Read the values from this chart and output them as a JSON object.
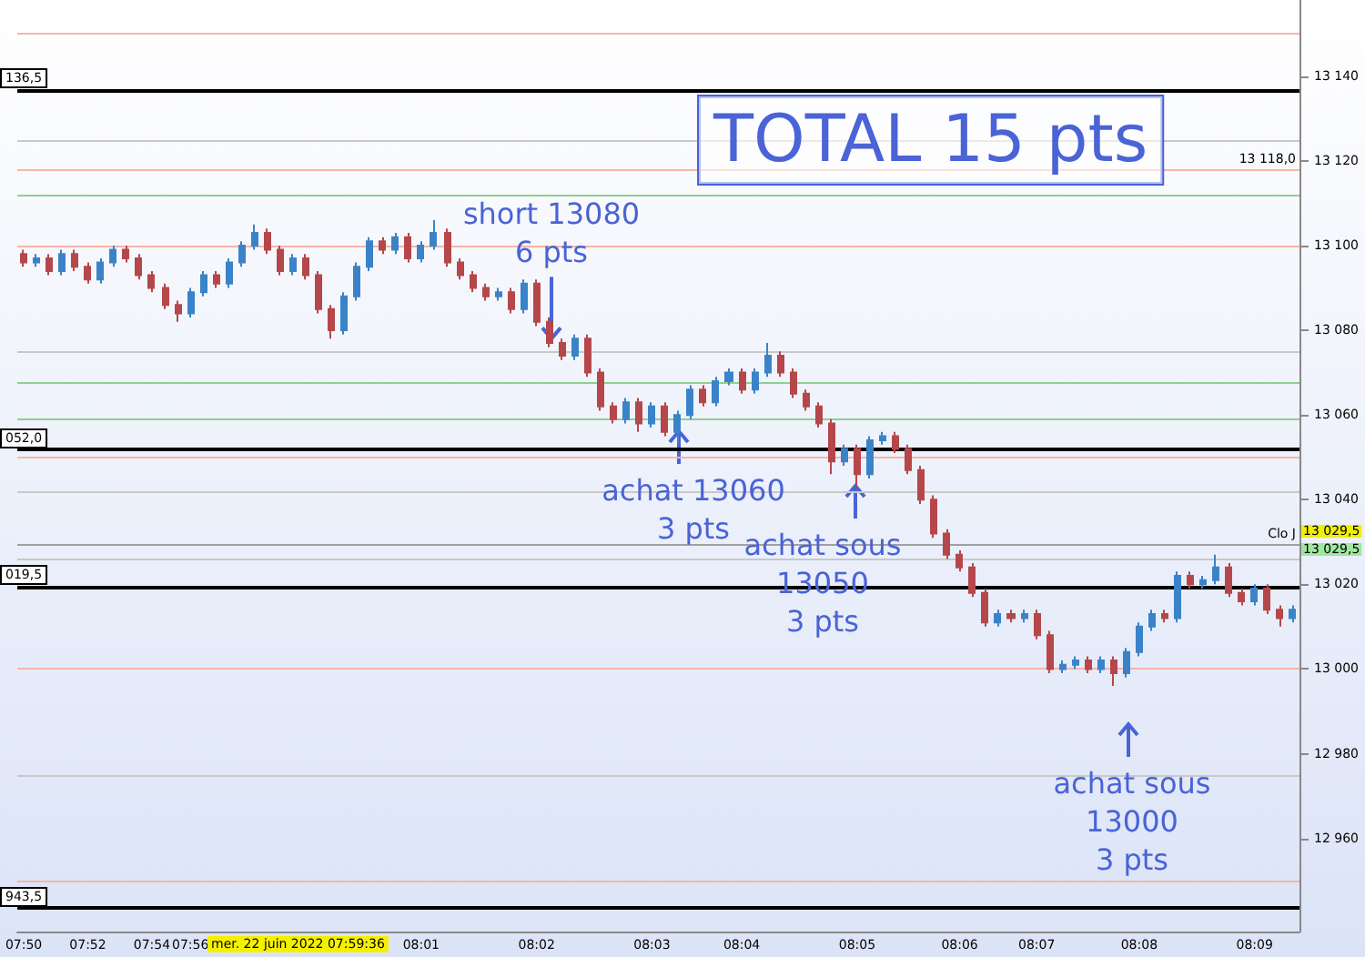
{
  "chart_data": {
    "type": "candlestick",
    "categories": [
      "07:50",
      null,
      null,
      null,
      null,
      "07:52",
      null,
      null,
      null,
      null,
      "07:54",
      null,
      null,
      "07:56",
      null,
      null,
      null,
      null,
      null,
      null,
      null,
      null,
      null,
      null,
      null,
      null,
      null,
      null,
      null,
      null,
      null,
      "08:01",
      null,
      null,
      null,
      null,
      null,
      null,
      null,
      null,
      "08:02",
      null,
      null,
      null,
      null,
      null,
      null,
      null,
      null,
      "08:03",
      null,
      null,
      null,
      null,
      null,
      null,
      "08:04",
      null,
      null,
      null,
      null,
      null,
      null,
      null,
      null,
      "08:05",
      null,
      null,
      null,
      null,
      null,
      null,
      null,
      "08:06",
      null,
      null,
      null,
      null,
      null,
      "08:07",
      null,
      null,
      null,
      null,
      null,
      null,
      null,
      "08:08",
      null,
      null,
      null,
      null,
      null,
      null,
      null,
      null,
      "08:09",
      null,
      null,
      null
    ],
    "ohlc": [
      [
        13098,
        13099,
        13095,
        13096
      ],
      [
        13096,
        13098,
        13095,
        13097
      ],
      [
        13097,
        13098,
        13093,
        13094
      ],
      [
        13094,
        13099,
        13093,
        13098
      ],
      [
        13098,
        13099,
        13094,
        13095
      ],
      [
        13095,
        13096,
        13091,
        13092
      ],
      [
        13092,
        13097,
        13091,
        13096
      ],
      [
        13096,
        13100,
        13095,
        13099
      ],
      [
        13099,
        13100,
        13096,
        13097
      ],
      [
        13097,
        13098,
        13092,
        13093
      ],
      [
        13093,
        13094,
        13089,
        13090
      ],
      [
        13090,
        13091,
        13085,
        13086
      ],
      [
        13086,
        13087,
        13082,
        13084
      ],
      [
        13084,
        13090,
        13083,
        13089
      ],
      [
        13089,
        13094,
        13088,
        13093
      ],
      [
        13093,
        13094,
        13090,
        13091
      ],
      [
        13091,
        13097,
        13090,
        13096
      ],
      [
        13096,
        13101,
        13095,
        13100
      ],
      [
        13100,
        13105,
        13099,
        13103
      ],
      [
        13103,
        13104,
        13098,
        13099
      ],
      [
        13099,
        13100,
        13093,
        13094
      ],
      [
        13094,
        13098,
        13093,
        13097
      ],
      [
        13097,
        13098,
        13092,
        13093
      ],
      [
        13093,
        13094,
        13084,
        13085
      ],
      [
        13085,
        13086,
        13078,
        13080
      ],
      [
        13080,
        13089,
        13079,
        13088
      ],
      [
        13088,
        13096,
        13087,
        13095
      ],
      [
        13095,
        13102,
        13094,
        13101
      ],
      [
        13101,
        13102,
        13098,
        13099
      ],
      [
        13099,
        13103,
        13098,
        13102
      ],
      [
        13102,
        13103,
        13096,
        13097
      ],
      [
        13097,
        13101,
        13096,
        13100
      ],
      [
        13100,
        13106,
        13099,
        13103
      ],
      [
        13103,
        13104,
        13095,
        13096
      ],
      [
        13096,
        13097,
        13092,
        13093
      ],
      [
        13093,
        13094,
        13089,
        13090
      ],
      [
        13090,
        13091,
        13087,
        13088
      ],
      [
        13088,
        13090,
        13087,
        13089
      ],
      [
        13089,
        13090,
        13084,
        13085
      ],
      [
        13085,
        13092,
        13084,
        13091
      ],
      [
        13091,
        13092,
        13081,
        13082
      ],
      [
        13082,
        13083,
        13076,
        13077
      ],
      [
        13077,
        13078,
        13073,
        13074
      ],
      [
        13074,
        13079,
        13073,
        13078
      ],
      [
        13078,
        13079,
        13069,
        13070
      ],
      [
        13070,
        13071,
        13061,
        13062
      ],
      [
        13062,
        13063,
        13058,
        13059
      ],
      [
        13059,
        13064,
        13058,
        13063
      ],
      [
        13063,
        13064,
        13056,
        13058
      ],
      [
        13058,
        13063,
        13057,
        13062
      ],
      [
        13062,
        13063,
        13055,
        13056
      ],
      [
        13056,
        13061,
        13053,
        13060
      ],
      [
        13060,
        13067,
        13059,
        13066
      ],
      [
        13066,
        13067,
        13062,
        13063
      ],
      [
        13063,
        13069,
        13062,
        13068
      ],
      [
        13068,
        13071,
        13067,
        13070
      ],
      [
        13070,
        13071,
        13065,
        13066
      ],
      [
        13066,
        13071,
        13065,
        13070
      ],
      [
        13070,
        13077,
        13069,
        13074
      ],
      [
        13074,
        13075,
        13069,
        13070
      ],
      [
        13070,
        13071,
        13064,
        13065
      ],
      [
        13065,
        13066,
        13061,
        13062
      ],
      [
        13062,
        13063,
        13057,
        13058
      ],
      [
        13058,
        13059,
        13046,
        13049
      ],
      [
        13049,
        13053,
        13048,
        13052
      ],
      [
        13052,
        13053,
        13043,
        13046
      ],
      [
        13046,
        13055,
        13045,
        13054
      ],
      [
        13054,
        13056,
        13053,
        13055
      ],
      [
        13055,
        13056,
        13051,
        13052
      ],
      [
        13052,
        13053,
        13046,
        13047
      ],
      [
        13047,
        13048,
        13039,
        13040
      ],
      [
        13040,
        13041,
        13031,
        13032
      ],
      [
        13032,
        13033,
        13026,
        13027
      ],
      [
        13027,
        13028,
        13023,
        13024
      ],
      [
        13024,
        13025,
        13017,
        13018
      ],
      [
        13018,
        13019,
        13010,
        13011
      ],
      [
        13011,
        13014,
        13010,
        13013
      ],
      [
        13013,
        13014,
        13011,
        13012
      ],
      [
        13012,
        13014,
        13011,
        13013
      ],
      [
        13013,
        13014,
        13007,
        13008
      ],
      [
        13008,
        13009,
        12999,
        13000
      ],
      [
        13000,
        13002,
        12999,
        13001
      ],
      [
        13001,
        13003,
        13000,
        13002
      ],
      [
        13002,
        13003,
        12999,
        13000
      ],
      [
        13000,
        13003,
        12999,
        13002
      ],
      [
        13002,
        13003,
        12996,
        12999
      ],
      [
        12999,
        13005,
        12998,
        13004
      ],
      [
        13004,
        13011,
        13003,
        13010
      ],
      [
        13010,
        13014,
        13009,
        13013
      ],
      [
        13013,
        13014,
        13011,
        13012
      ],
      [
        13012,
        13023,
        13011,
        13022
      ],
      [
        13022,
        13023,
        13019,
        13020
      ],
      [
        13020,
        13022,
        13019,
        13021
      ],
      [
        13021,
        13027,
        13020,
        13024
      ],
      [
        13024,
        13025,
        13017,
        13018
      ],
      [
        13018,
        13019,
        13015,
        13016
      ],
      [
        13016,
        13020,
        13015,
        13019
      ],
      [
        13019,
        13020,
        13013,
        13014
      ],
      [
        13014,
        13015,
        13010,
        13012
      ],
      [
        13012,
        13015,
        13011,
        13014
      ]
    ],
    "colors": [
      "#b5474b",
      "#3b83c8",
      "#b5474b",
      "#3b83c8",
      "#b5474b",
      "#b5474b",
      "#3b83c8",
      "#3b83c8",
      "#b5474b",
      "#b5474b",
      "#b5474b",
      "#b5474b",
      "#b5474b",
      "#3b83c8",
      "#3b83c8",
      "#b5474b",
      "#3b83c8",
      "#3b83c8",
      "#3b83c8",
      "#b5474b",
      "#b5474b",
      "#3b83c8",
      "#b5474b",
      "#b5474b",
      "#b5474b",
      "#3b83c8",
      "#3b83c8",
      "#3b83c8",
      "#b5474b",
      "#3b83c8",
      "#b5474b",
      "#3b83c8",
      "#3b83c8",
      "#b5474b",
      "#b5474b",
      "#b5474b",
      "#b5474b",
      "#3b83c8",
      "#b5474b",
      "#3b83c8",
      "#b5474b",
      "#b5474b",
      "#b5474b",
      "#3b83c8",
      "#b5474b",
      "#b5474b",
      "#b5474b",
      "#3b83c8",
      "#b5474b",
      "#3b83c8",
      "#b5474b",
      "#3b83c8",
      "#3b83c8",
      "#b5474b",
      "#3b83c8",
      "#3b83c8",
      "#b5474b",
      "#3b83c8",
      "#3b83c8",
      "#b5474b",
      "#b5474b",
      "#b5474b",
      "#b5474b",
      "#b5474b",
      "#3b83c8",
      "#b5474b",
      "#3b83c8",
      "#3b83c8",
      "#b5474b",
      "#b5474b",
      "#b5474b",
      "#b5474b",
      "#b5474b",
      "#b5474b",
      "#b5474b",
      "#b5474b",
      "#3b83c8",
      "#b5474b",
      "#3b83c8",
      "#b5474b",
      "#b5474b",
      "#3b83c8",
      "#3b83c8",
      "#b5474b",
      "#3b83c8",
      "#b5474b",
      "#3b83c8",
      "#3b83c8",
      "#3b83c8",
      "#b5474b",
      "#3b83c8",
      "#b5474b",
      "#3b83c8",
      "#3b83c8",
      "#b5474b",
      "#b5474b",
      "#3b83c8",
      "#b5474b",
      "#b5474b",
      "#3b83c8"
    ],
    "ylim": [
      12938,
      13158
    ],
    "yticks": [
      {
        "value": 12960,
        "label": "12 960"
      },
      {
        "value": 12980,
        "label": "12 980"
      },
      {
        "value": 13000,
        "label": "13 000"
      },
      {
        "value": 13020,
        "label": "13 020"
      },
      {
        "value": 13040,
        "label": "13 040"
      },
      {
        "value": 13060,
        "label": "13 060"
      },
      {
        "value": 13080,
        "label": "13 080"
      },
      {
        "value": 13100,
        "label": "13 100"
      },
      {
        "value": 13120,
        "label": "13 120"
      },
      {
        "value": 13140,
        "label": "13 140"
      }
    ],
    "ref_lines": [
      {
        "axis": "y",
        "value": 13150,
        "color": "#f4b6a6"
      },
      {
        "axis": "y",
        "value": 13136.5,
        "color": "#000000"
      },
      {
        "axis": "y",
        "value": 13125,
        "color": "#c8c8c8"
      },
      {
        "axis": "y",
        "value": 13118,
        "label": "13 118,0",
        "color": "#f4b6a6"
      },
      {
        "axis": "y",
        "value": 13112,
        "color": "#8fcf8f"
      },
      {
        "axis": "y",
        "value": 13100,
        "color": "#f4b6a6"
      },
      {
        "axis": "y",
        "value": 13075,
        "color": "#c8c8c8"
      },
      {
        "axis": "y",
        "value": 13067.5,
        "color": "#8fcf8f"
      },
      {
        "axis": "y",
        "value": 13059,
        "color": "#8fcf8f"
      },
      {
        "axis": "y",
        "value": 13052,
        "color": "#000000"
      },
      {
        "axis": "y",
        "value": 13050,
        "color": "#f4b6a6"
      },
      {
        "axis": "y",
        "value": 13042,
        "color": "#c8c8c8"
      },
      {
        "axis": "y",
        "value": 13029.5,
        "label": "Clo J",
        "color": "#a0a0a0"
      },
      {
        "axis": "y",
        "value": 13026,
        "color": "#c8c8c8"
      },
      {
        "axis": "y",
        "value": 13019.5,
        "color": "#000000"
      },
      {
        "axis": "y",
        "value": 13000,
        "color": "#f4b6a6"
      },
      {
        "axis": "y",
        "value": 12975,
        "color": "#c8c8c8"
      },
      {
        "axis": "y",
        "value": 12950,
        "color": "#f4b6a6"
      },
      {
        "axis": "y",
        "value": 12943.5,
        "color": "#000000"
      }
    ],
    "annotations": [
      {
        "text": "short 13080\n6 pts",
        "y": 13078
      },
      "achat 13060\n3 pts",
      "achat sous\n13050\n3 pts",
      "achat sous\n13000\n3 pts",
      "TOTAL 15 pts",
      "mer. 22 juin 2022 07:59:36",
      "13 029,5",
      "13 029,5",
      "136,5",
      "052,0",
      "019,5",
      "943,5"
    ]
  }
}
